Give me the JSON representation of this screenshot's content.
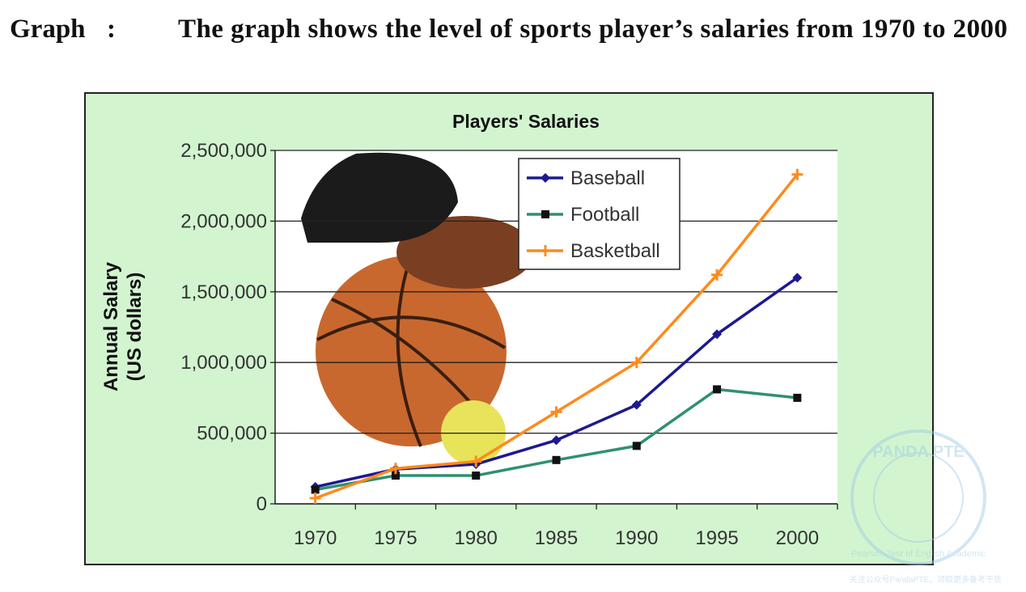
{
  "header": {
    "label": "Graph",
    "separator": ":",
    "title": "The graph shows the level of sports player’s salaries from 1970 to 2000"
  },
  "chart_data": {
    "type": "line",
    "title": "Players' Salaries",
    "ylabel_lines": [
      "Annual Salary",
      "(US dollars)"
    ],
    "categories": [
      "1970",
      "1975",
      "1980",
      "1985",
      "1990",
      "1995",
      "2000"
    ],
    "series": [
      {
        "name": "Baseball",
        "color": "#1c1a8f",
        "marker": "diamond",
        "values": [
          120000,
          245000,
          280000,
          450000,
          700000,
          1200000,
          1600000
        ]
      },
      {
        "name": "Football",
        "color": "#2f9070",
        "marker": "square",
        "values": [
          100000,
          200000,
          200000,
          310000,
          410000,
          810000,
          750000
        ]
      },
      {
        "name": "Basketball",
        "color": "#ff8a1c",
        "marker": "star",
        "values": [
          40000,
          250000,
          300000,
          650000,
          1000000,
          1620000,
          2330000
        ]
      }
    ],
    "ylim": [
      0,
      2500000
    ],
    "yticks": [
      0,
      {
        "value": 500000,
        "label": "500,000"
      },
      {
        "value": 1000000,
        "label": "1,000,000"
      },
      {
        "value": 1500000,
        "label": "1,500,000"
      },
      {
        "value": 2000000,
        "label": "2,000,000"
      },
      {
        "value": 2500000,
        "label": "2,500,000"
      }
    ],
    "grid": true,
    "legend": "top-right"
  },
  "watermark": {
    "brand": "PANDA PTE",
    "subtitle": "Pearson Test of English Academic",
    "footer": "关注公众号PandaPTE，领取更多备考干货"
  }
}
